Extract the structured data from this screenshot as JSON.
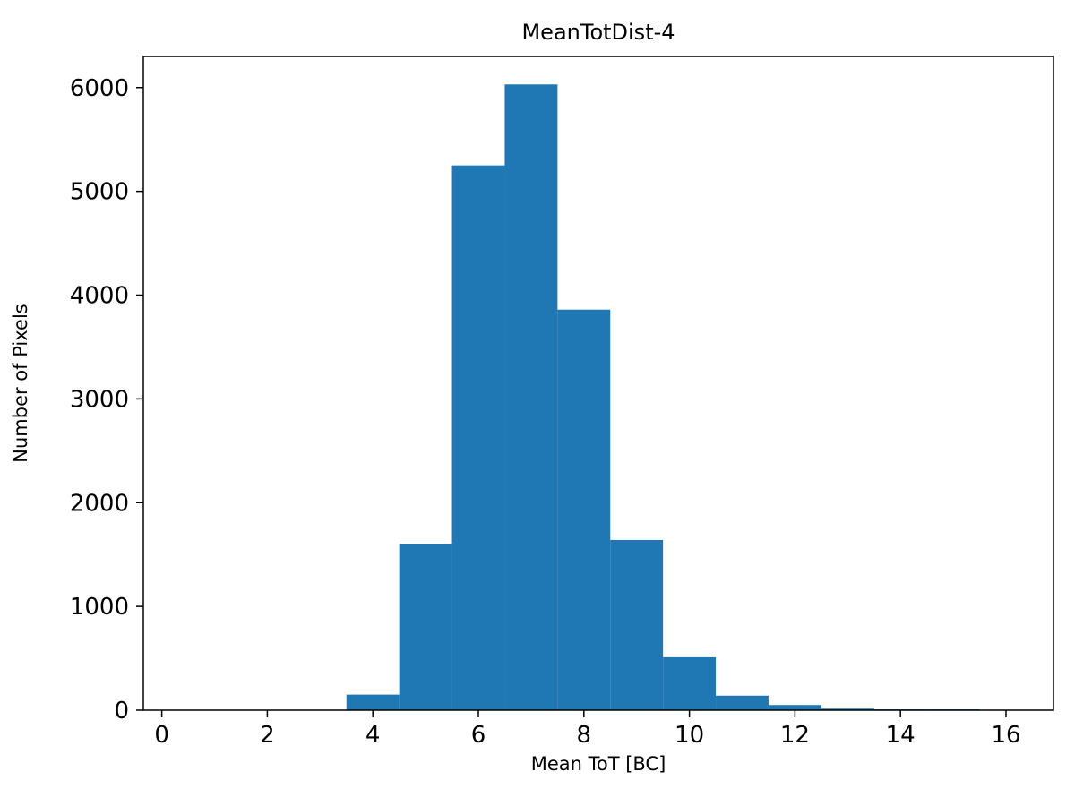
{
  "chart_data": {
    "type": "bar",
    "title": "MeanTotDist-4",
    "xlabel": "Mean ToT [BC]",
    "ylabel": "Number of Pixels",
    "bar_color": "#1f77b4",
    "axis_color": "#000000",
    "background_color": "#ffffff",
    "bin_edges": [
      3.5,
      4.5,
      5.5,
      6.5,
      7.5,
      8.5,
      9.5,
      10.5,
      11.5,
      12.5,
      13.5,
      14.5,
      15.5
    ],
    "counts": [
      150,
      1600,
      5250,
      6030,
      3860,
      1640,
      510,
      140,
      50,
      15,
      8,
      8
    ],
    "xlim": [
      -0.35,
      16.9
    ],
    "ylim": [
      0,
      6300
    ],
    "xticks": [
      0,
      2,
      4,
      6,
      8,
      10,
      12,
      14,
      16
    ],
    "yticks": [
      0,
      1000,
      2000,
      3000,
      4000,
      5000,
      6000
    ],
    "grid": false,
    "legend_position": "none"
  }
}
